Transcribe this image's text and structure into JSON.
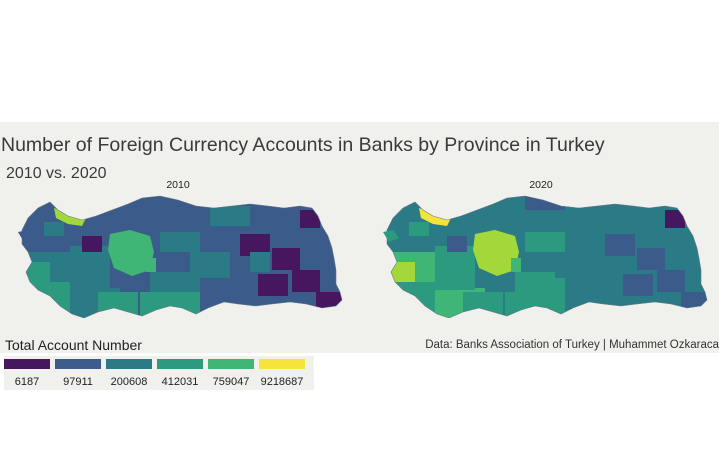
{
  "title": "Number of Foreign Currency Accounts in Banks by Province in Turkey",
  "subtitle": "2010 vs. 2020",
  "facets": [
    {
      "label": "2010"
    },
    {
      "label": "2020"
    }
  ],
  "caption": "Data: Banks Association of Turkey | Muhammet Ozkaraca",
  "legend": {
    "title": "Total Account Number",
    "items": [
      {
        "label": "6187",
        "color": "#46175e"
      },
      {
        "label": "97911",
        "color": "#3b5c8a"
      },
      {
        "label": "200608",
        "color": "#2a7b85"
      },
      {
        "label": "412031",
        "color": "#2b9a7f"
      },
      {
        "label": "759047",
        "color": "#3fb676"
      },
      {
        "label": "9218687",
        "color": "#f4e43a"
      }
    ]
  }
}
